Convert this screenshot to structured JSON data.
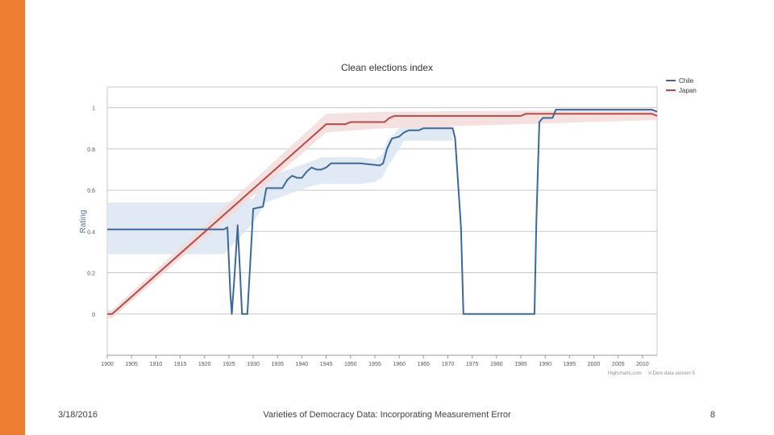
{
  "footer": {
    "date": "3/18/2016",
    "title": "Varieties of Democracy Data: Incorporating Measurement Error",
    "page_number": "8"
  },
  "colors": {
    "accent": "#ed7d31",
    "chile": "#3d6898",
    "japan": "#b94a48",
    "chile_band": "#dce6f2",
    "japan_band": "#f2dcdb",
    "grid": "#c8c8c8"
  },
  "chart_data": {
    "type": "line",
    "title": "Clean elections index",
    "ylabel": "Rating",
    "xlabel": "",
    "xlim": [
      1900,
      2013
    ],
    "ylim": [
      -0.2,
      1.1
    ],
    "yticks": [
      0,
      0.2,
      0.4,
      0.6,
      0.8,
      1
    ],
    "ytick_labels": [
      "0",
      "0.2",
      "0.4",
      "0.6",
      "0.8",
      "1"
    ],
    "xticks": [
      1900,
      1905,
      1910,
      1915,
      1920,
      1925,
      1930,
      1935,
      1940,
      1945,
      1950,
      1955,
      1960,
      1965,
      1970,
      1975,
      1980,
      1985,
      1990,
      1995,
      2000,
      2005,
      2010
    ],
    "xtick_labels": [
      "1900",
      "1905",
      "1910",
      "1915",
      "1920",
      "1925",
      "1930",
      "1935",
      "1940",
      "1945",
      "1950",
      "1955",
      "1960",
      "1965",
      "1970",
      "1975",
      "1980",
      "1985",
      "1990",
      "1995",
      "2000",
      "2005",
      "2010"
    ],
    "grid": true,
    "legend_position": "top-right",
    "credit_left": "Highcharts.com",
    "credit_right": "V-Dem data version 5",
    "series": [
      {
        "name": "Chile",
        "color": "#3d6898",
        "points": [
          [
            1900,
            0.41
          ],
          [
            1924,
            0.41
          ],
          [
            1924.7,
            0.42
          ],
          [
            1925.3,
            0.1
          ],
          [
            1925.6,
            0.0
          ],
          [
            1926.2,
            0.2
          ],
          [
            1926.8,
            0.43
          ],
          [
            1927.3,
            0.2
          ],
          [
            1927.7,
            0.0
          ],
          [
            1928.8,
            0.0
          ],
          [
            1929.4,
            0.25
          ],
          [
            1930,
            0.51
          ],
          [
            1932,
            0.52
          ],
          [
            1932.7,
            0.61
          ],
          [
            1936,
            0.61
          ],
          [
            1937,
            0.65
          ],
          [
            1938,
            0.67
          ],
          [
            1939,
            0.66
          ],
          [
            1940,
            0.66
          ],
          [
            1941,
            0.69
          ],
          [
            1942,
            0.71
          ],
          [
            1943,
            0.7
          ],
          [
            1944,
            0.7
          ],
          [
            1945,
            0.71
          ],
          [
            1946,
            0.73
          ],
          [
            1952,
            0.73
          ],
          [
            1956,
            0.72
          ],
          [
            1956.7,
            0.73
          ],
          [
            1957.5,
            0.8
          ],
          [
            1958.5,
            0.85
          ],
          [
            1960,
            0.86
          ],
          [
            1961,
            0.88
          ],
          [
            1962,
            0.89
          ],
          [
            1964,
            0.89
          ],
          [
            1965,
            0.9
          ],
          [
            1971,
            0.9
          ],
          [
            1971.5,
            0.85
          ],
          [
            1972.7,
            0.42
          ],
          [
            1973.2,
            0.0
          ],
          [
            1987.8,
            0.0
          ],
          [
            1988.2,
            0.46
          ],
          [
            1988.8,
            0.93
          ],
          [
            1989.5,
            0.95
          ],
          [
            1991.5,
            0.95
          ],
          [
            1992.2,
            0.99
          ],
          [
            1993,
            0.99
          ],
          [
            2008,
            0.99
          ],
          [
            2012,
            0.99
          ],
          [
            2013,
            0.98
          ]
        ],
        "band_upper": [
          [
            1900,
            0.54
          ],
          [
            1924,
            0.54
          ],
          [
            1930,
            0.56
          ],
          [
            1932.5,
            0.66
          ],
          [
            1942,
            0.74
          ],
          [
            1944,
            0.76
          ],
          [
            1952,
            0.76
          ],
          [
            1955,
            0.75
          ],
          [
            1956.5,
            0.77
          ],
          [
            1957.5,
            0.84
          ],
          [
            1960,
            0.9
          ],
          [
            1961,
            0.91
          ],
          [
            1971,
            0.91
          ]
        ],
        "band_lower": [
          [
            1900,
            0.29
          ],
          [
            1924,
            0.29
          ],
          [
            1930,
            0.44
          ],
          [
            1932.5,
            0.54
          ],
          [
            1942,
            0.62
          ],
          [
            1944,
            0.63
          ],
          [
            1952,
            0.63
          ],
          [
            1955,
            0.64
          ],
          [
            1956.5,
            0.66
          ],
          [
            1957.5,
            0.71
          ],
          [
            1960,
            0.8
          ],
          [
            1961,
            0.84
          ],
          [
            1971,
            0.84
          ]
        ]
      },
      {
        "name": "Japan",
        "color": "#b94a48",
        "points": [
          [
            1900,
            0.0
          ],
          [
            1901,
            0.0
          ],
          [
            1945,
            0.92
          ],
          [
            1949,
            0.92
          ],
          [
            1950,
            0.93
          ],
          [
            1957,
            0.93
          ],
          [
            1958,
            0.95
          ],
          [
            1959,
            0.96
          ],
          [
            1985,
            0.96
          ],
          [
            1986,
            0.97
          ],
          [
            2012,
            0.97
          ],
          [
            2013,
            0.96
          ]
        ],
        "band_upper": [
          [
            1900,
            0.02
          ],
          [
            1901,
            0.02
          ],
          [
            1945,
            0.97
          ],
          [
            1957,
            0.98
          ],
          [
            2013,
            0.99
          ]
        ],
        "band_lower": [
          [
            1900,
            -0.02
          ],
          [
            1901,
            -0.02
          ],
          [
            1945,
            0.88
          ],
          [
            1957,
            0.9
          ],
          [
            2013,
            0.94
          ]
        ]
      }
    ]
  }
}
